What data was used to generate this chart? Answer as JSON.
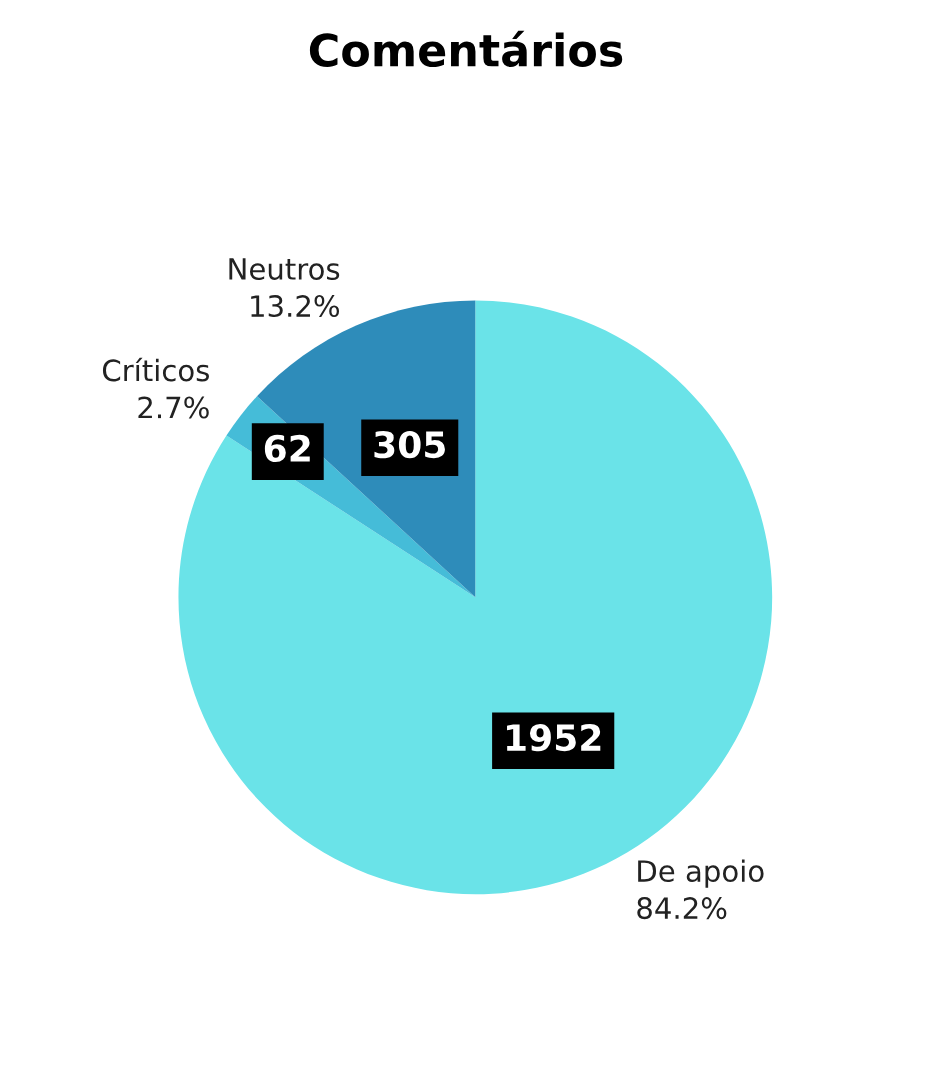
{
  "chart_data": {
    "type": "pie",
    "title": "Comentários",
    "categories": [
      "De apoio",
      "Críticos",
      "Neutros"
    ],
    "values": [
      1952,
      62,
      305
    ],
    "data_labels": true,
    "colors": [
      "#6ae3e8",
      "#45bcd8",
      "#2e8cba"
    ],
    "annotations": [
      "84.2%",
      "2.7%",
      "13.2%"
    ]
  }
}
